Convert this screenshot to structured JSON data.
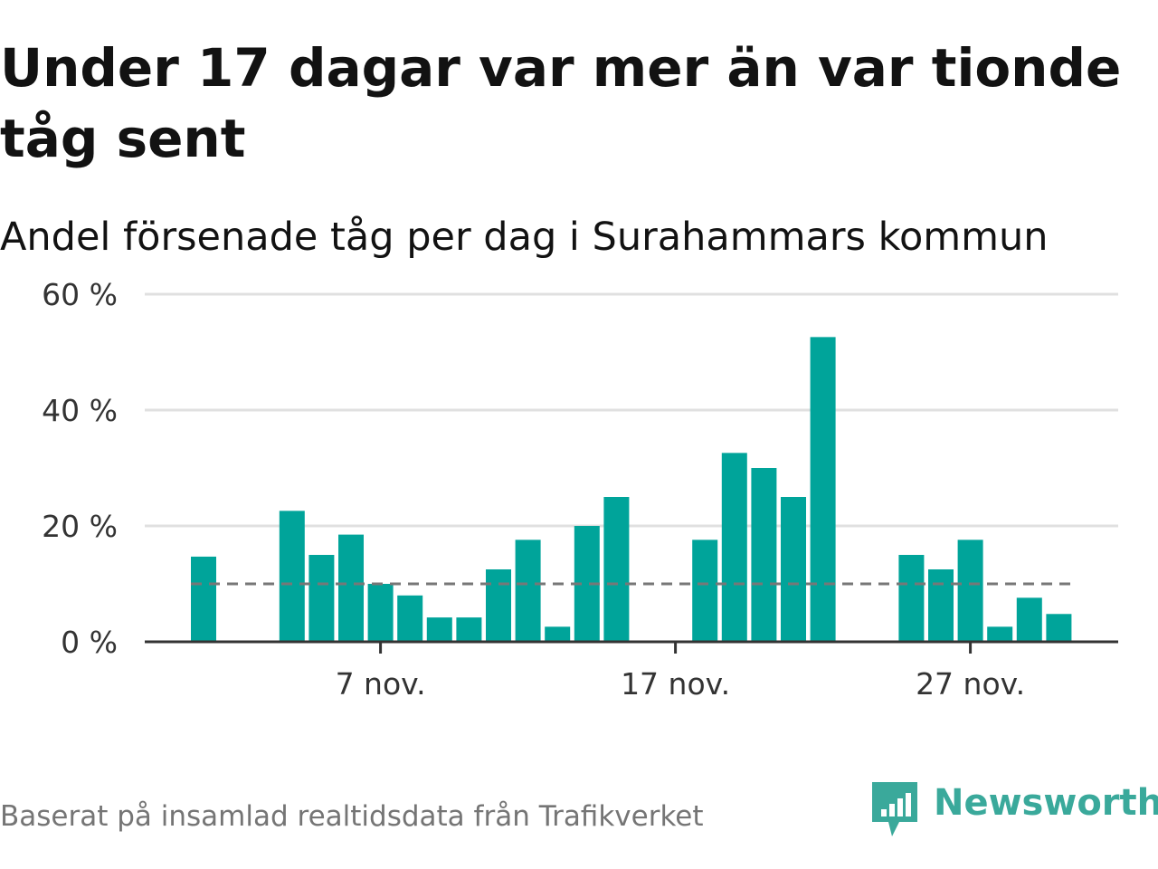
{
  "title": "Under 17 dagar var mer än var tionde tåg sent",
  "subtitle": "Andel försenade tåg per dag i Surahammars kommun",
  "source": "Baserat på insamlad realtidsdata från Trafikverket",
  "logo_text": "Newsworthy",
  "colors": {
    "bar": "#00a49a",
    "grid": "#e0e0e0",
    "axis": "#333333",
    "reference": "#777777",
    "logo": "#3aa99b"
  },
  "chart_data": {
    "type": "bar",
    "x_start_day": 1,
    "x_end_day": 30,
    "categories": [
      "1 nov.",
      "2 nov.",
      "3 nov.",
      "4 nov.",
      "5 nov.",
      "6 nov.",
      "7 nov.",
      "8 nov.",
      "9 nov.",
      "10 nov.",
      "11 nov.",
      "12 nov.",
      "13 nov.",
      "14 nov.",
      "15 nov.",
      "16 nov.",
      "17 nov.",
      "18 nov.",
      "19 nov.",
      "20 nov.",
      "21 nov.",
      "22 nov.",
      "23 nov.",
      "24 nov.",
      "25 nov.",
      "26 nov.",
      "27 nov.",
      "28 nov.",
      "29 nov.",
      "30 nov."
    ],
    "values": [
      14.7,
      null,
      null,
      22.6,
      15.0,
      18.5,
      10.0,
      8.0,
      4.2,
      4.2,
      12.5,
      17.6,
      2.6,
      20.0,
      25.0,
      null,
      null,
      17.6,
      32.6,
      30.0,
      25.0,
      52.6,
      null,
      null,
      15.0,
      12.5,
      17.6,
      2.6,
      7.6,
      4.8
    ],
    "x_ticks": [
      {
        "day": 7,
        "label": "7 nov."
      },
      {
        "day": 17,
        "label": "17 nov."
      },
      {
        "day": 27,
        "label": "27 nov."
      }
    ],
    "y_ticks": [
      {
        "value": 0,
        "label": "0 %"
      },
      {
        "value": 20,
        "label": "20 %"
      },
      {
        "value": 40,
        "label": "40 %"
      },
      {
        "value": 60,
        "label": "60 %"
      }
    ],
    "ylim": [
      0,
      60
    ],
    "reference_line": 10,
    "grid": true,
    "xlabel": "",
    "ylabel": ""
  }
}
